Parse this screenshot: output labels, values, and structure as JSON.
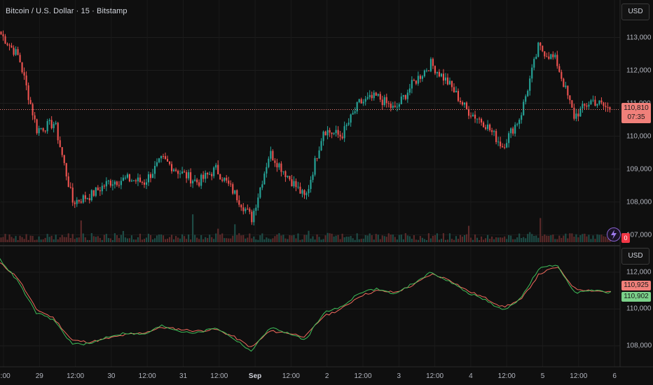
{
  "header": {
    "symbol_title": "Bitcoin / U.S. Dollar · 15 · Bitstamp"
  },
  "scale": {
    "main_currency": "USD",
    "indicator_currency": "USD"
  },
  "price_axis": {
    "labels": [
      "113,000",
      "112,000",
      "111,000",
      "110,000",
      "109,000",
      "108,000",
      "107,000"
    ]
  },
  "indicator_axis": {
    "labels": [
      "112,000",
      "110,000",
      "108,000"
    ]
  },
  "time_axis": {
    "labels": [
      "2:00",
      "29",
      "12:00",
      "30",
      "12:00",
      "31",
      "12:00",
      "Sep",
      "12:00",
      "2",
      "12:00",
      "3",
      "12:00",
      "4",
      "12:00",
      "5",
      "12:00",
      "6"
    ]
  },
  "last_price": {
    "value": "110,810",
    "countdown": "07:35"
  },
  "indicator_values": {
    "red": "110,925",
    "green": "110,902"
  },
  "volume_badge": "0",
  "colors": {
    "up": "#26a69a",
    "down": "#ef5350",
    "ma_red": "#f06a5d",
    "ma_green": "#3fbf5a"
  },
  "chart_data": [
    {
      "type": "candlestick",
      "title": "Bitcoin / U.S. Dollar · 15 · Bitstamp",
      "ylim": [
        106800,
        113500
      ],
      "y_ticks": [
        107000,
        108000,
        109000,
        110000,
        111000,
        112000,
        113000
      ],
      "last": 110810,
      "series": [
        {
          "name": "close",
          "x": [
            "Aug 28 12:00",
            "Aug 29 00:00",
            "Aug 29 06:00",
            "Aug 29 12:00",
            "Aug 29 18:00",
            "Aug 30 00:00",
            "Aug 30 06:00",
            "Aug 30 12:00",
            "Aug 30 18:00",
            "Aug 31 00:00",
            "Aug 31 06:00",
            "Aug 31 12:00",
            "Aug 31 18:00",
            "Sep 1 00:00",
            "Sep 1 06:00",
            "Sep 1 12:00",
            "Sep 1 18:00",
            "Sep 2 00:00",
            "Sep 2 06:00",
            "Sep 2 12:00",
            "Sep 2 18:00",
            "Sep 3 00:00",
            "Sep 3 06:00",
            "Sep 3 12:00",
            "Sep 3 18:00",
            "Sep 4 00:00",
            "Sep 4 06:00",
            "Sep 4 12:00",
            "Sep 4 18:00",
            "Sep 5 00:00",
            "Sep 5 06:00",
            "Sep 5 12:00",
            "Sep 5 18:00",
            "Sep 6 00:00",
            "Sep 6 06:00"
          ],
          "values": [
            113100,
            112400,
            110200,
            110400,
            108000,
            108200,
            108600,
            108700,
            108600,
            109300,
            108900,
            108600,
            109000,
            108300,
            107500,
            109500,
            108800,
            108100,
            110200,
            110000,
            111000,
            111200,
            110800,
            111600,
            112200,
            111600,
            110800,
            110400,
            109700,
            110600,
            112700,
            112300,
            110600,
            111100,
            110810
          ]
        }
      ]
    },
    {
      "type": "line",
      "ylim": [
        107200,
        113100
      ],
      "y_ticks": [
        108000,
        110000,
        112000
      ],
      "series": [
        {
          "name": "",
          "values": [
            112500,
            111700,
            110000,
            109500,
            108300,
            108200,
            108400,
            108600,
            108700,
            109000,
            108900,
            108800,
            108900,
            108500,
            107900,
            108800,
            108700,
            108500,
            109600,
            110000,
            110700,
            111000,
            110900,
            111300,
            111900,
            111600,
            111000,
            110600,
            110100,
            110500,
            111900,
            112300,
            111100,
            111000,
            110925
          ]
        },
        {
          "name": "",
          "values": [
            112700,
            111500,
            109800,
            109400,
            108100,
            108100,
            108500,
            108700,
            108600,
            109100,
            108800,
            108700,
            109000,
            108400,
            107700,
            109000,
            108700,
            108300,
            109800,
            110100,
            110900,
            111100,
            110800,
            111400,
            112000,
            111500,
            110900,
            110500,
            109900,
            110600,
            112200,
            112400,
            110900,
            111000,
            110902
          ]
        }
      ]
    }
  ]
}
